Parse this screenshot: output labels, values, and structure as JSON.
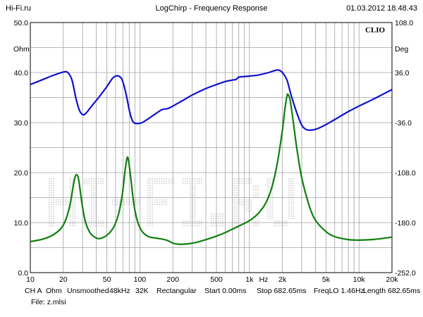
{
  "header": {
    "site": "Hi-Fi.ru",
    "title": "LogChirp - Frequency Response",
    "datetime": "01.03.2012 18.48.43"
  },
  "brand": "CLIO",
  "footer": {
    "channel": "CH A",
    "units": "Ohm",
    "smoothing": "Unsmoothed",
    "sample_rate": "48kHz",
    "fft_size": "32K",
    "window": "Rectangular",
    "start": "Start 0.00ms",
    "stop": "Stop 682.65ms",
    "freqlo": "FreqLO 1.46Hz",
    "length": "Length 682.65ms",
    "file": "File: z.mlsi"
  },
  "watermark": "HI-FI.RU",
  "colors": {
    "magnitude": "#1010d0",
    "phase": "#108010",
    "grid": "#a0a0a0",
    "watermark": "#e2e2e2"
  },
  "chart_data": {
    "type": "line",
    "x_scale": "log",
    "xlim": [
      10,
      20000
    ],
    "x_ticks": [
      "10",
      "20",
      "50",
      "100",
      "200",
      "500",
      "1k",
      "2k",
      "5k",
      "10k",
      "20k"
    ],
    "x_unit": "Hz",
    "y_left": {
      "label": "Ohm",
      "ylim": [
        0,
        50
      ],
      "ticks": [
        "0.0",
        "10.0",
        "20.0",
        "30.0",
        "40.0",
        "50.0"
      ]
    },
    "y_right": {
      "label": "Deg",
      "ylim": [
        -252,
        108
      ],
      "ticks": [
        "-252.0",
        "-180.0",
        "-108.0",
        "-36.0",
        "36.0",
        "108.0"
      ]
    },
    "grid": true,
    "series": [
      {
        "axis": "left_blue",
        "points": [
          [
            10,
            37.6
          ],
          [
            13,
            38.6
          ],
          [
            16,
            39.4
          ],
          [
            20,
            40.1
          ],
          [
            22,
            40.0
          ],
          [
            24,
            38.5
          ],
          [
            26,
            35.0
          ],
          [
            28,
            32.5
          ],
          [
            30,
            31.6
          ],
          [
            32,
            31.8
          ],
          [
            36,
            33.2
          ],
          [
            42,
            35.0
          ],
          [
            50,
            37.2
          ],
          [
            56,
            38.8
          ],
          [
            60,
            39.3
          ],
          [
            64,
            39.3
          ],
          [
            68,
            38.8
          ],
          [
            72,
            37.2
          ],
          [
            76,
            35.0
          ],
          [
            80,
            32.5
          ],
          [
            84,
            30.8
          ],
          [
            88,
            30.0
          ],
          [
            95,
            29.8
          ],
          [
            105,
            30.0
          ],
          [
            120,
            30.8
          ],
          [
            140,
            31.8
          ],
          [
            160,
            32.6
          ],
          [
            180,
            32.8
          ],
          [
            200,
            33.3
          ],
          [
            250,
            34.5
          ],
          [
            300,
            35.5
          ],
          [
            400,
            36.8
          ],
          [
            500,
            37.6
          ],
          [
            600,
            38.2
          ],
          [
            700,
            38.5
          ],
          [
            750,
            38.6
          ],
          [
            780,
            38.9
          ],
          [
            800,
            39.1
          ],
          [
            900,
            39.2
          ],
          [
            1000,
            39.3
          ],
          [
            1200,
            39.5
          ],
          [
            1500,
            40.0
          ],
          [
            1700,
            40.4
          ],
          [
            1850,
            40.5
          ],
          [
            2000,
            40.0
          ],
          [
            2200,
            38.5
          ],
          [
            2400,
            35.5
          ],
          [
            2700,
            32.0
          ],
          [
            3000,
            29.5
          ],
          [
            3300,
            28.6
          ],
          [
            3700,
            28.5
          ],
          [
            4200,
            28.8
          ],
          [
            5000,
            29.6
          ],
          [
            6000,
            30.6
          ],
          [
            8000,
            32.2
          ],
          [
            10000,
            33.3
          ],
          [
            13000,
            34.5
          ],
          [
            16000,
            35.5
          ],
          [
            20000,
            36.6
          ]
        ]
      },
      {
        "axis": "left_green",
        "points": [
          [
            10,
            6.2
          ],
          [
            13,
            6.7
          ],
          [
            16,
            7.5
          ],
          [
            19,
            8.8
          ],
          [
            21,
            10.5
          ],
          [
            23,
            13.5
          ],
          [
            24.5,
            17.0
          ],
          [
            25.5,
            19.0
          ],
          [
            26.5,
            19.6
          ],
          [
            27.5,
            18.8
          ],
          [
            28.5,
            16.5
          ],
          [
            30,
            13.0
          ],
          [
            32,
            10.0
          ],
          [
            35,
            8.0
          ],
          [
            38,
            7.2
          ],
          [
            42,
            6.8
          ],
          [
            46,
            7.0
          ],
          [
            52,
            7.8
          ],
          [
            58,
            9.2
          ],
          [
            64,
            11.8
          ],
          [
            69,
            15.5
          ],
          [
            72,
            19.0
          ],
          [
            75,
            22.0
          ],
          [
            77,
            23.1
          ],
          [
            79,
            22.2
          ],
          [
            82,
            19.5
          ],
          [
            86,
            15.5
          ],
          [
            90,
            12.5
          ],
          [
            96,
            10.0
          ],
          [
            105,
            8.2
          ],
          [
            120,
            7.2
          ],
          [
            140,
            6.9
          ],
          [
            160,
            6.7
          ],
          [
            180,
            6.4
          ],
          [
            200,
            5.9
          ],
          [
            220,
            5.7
          ],
          [
            260,
            5.7
          ],
          [
            320,
            6.0
          ],
          [
            400,
            6.6
          ],
          [
            500,
            7.3
          ],
          [
            600,
            8.0
          ],
          [
            700,
            8.7
          ],
          [
            800,
            9.3
          ],
          [
            1000,
            10.4
          ],
          [
            1200,
            11.8
          ],
          [
            1400,
            13.8
          ],
          [
            1600,
            17.0
          ],
          [
            1800,
            22.0
          ],
          [
            2000,
            28.5
          ],
          [
            2100,
            32.5
          ],
          [
            2200,
            35.3
          ],
          [
            2250,
            35.6
          ],
          [
            2350,
            34.5
          ],
          [
            2500,
            30.5
          ],
          [
            2700,
            25.0
          ],
          [
            3000,
            19.0
          ],
          [
            3500,
            13.5
          ],
          [
            4000,
            10.5
          ],
          [
            5000,
            8.2
          ],
          [
            6000,
            7.2
          ],
          [
            8000,
            6.6
          ],
          [
            10000,
            6.5
          ],
          [
            13000,
            6.6
          ],
          [
            16000,
            6.8
          ],
          [
            20000,
            7.1
          ]
        ]
      }
    ]
  }
}
